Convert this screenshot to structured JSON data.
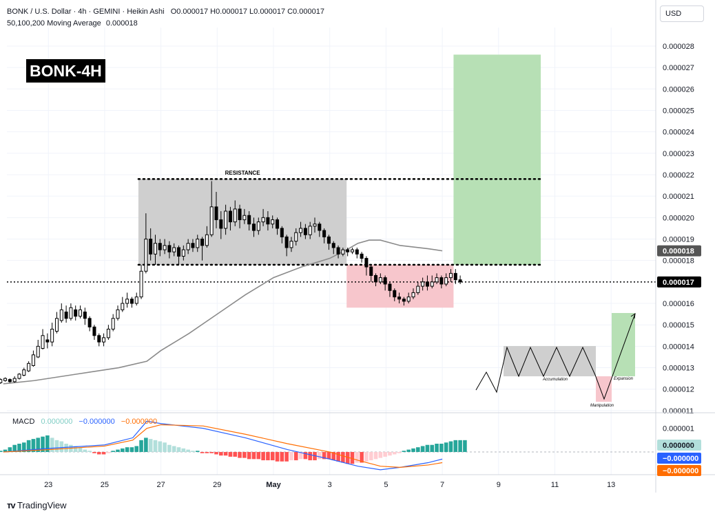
{
  "header": {
    "symbol": "BONK / U.S. Dollar · 4h · GEMINI · Heikin Ashi",
    "ohlc": "O0.000017 H0.000017 L0.000017 C0.000017",
    "ma_label": "50,100,200 Moving Average",
    "ma_value": "0.000018"
  },
  "currency_button": "USD",
  "badge": "BONK-4H",
  "resistance_label": "RESISTANCE",
  "inset": {
    "accumulation": "Accumulation",
    "manipulation": "Manipulation",
    "expansion": "Expansion"
  },
  "macd": {
    "label": "MACD",
    "hist_value": "0.000000",
    "macd_value": "−0.000000",
    "signal_value": "−0.000000",
    "axis_label": "0.000001"
  },
  "price_badges": {
    "ma": "0.000018",
    "last": "0.000017"
  },
  "macd_badges": {
    "hist": "0.000000",
    "macd": "−0.000000",
    "signal": "−0.000000"
  },
  "brand": "TradingView",
  "colors": {
    "up": "#000000",
    "down": "#000000",
    "ma": "#8a8a8a",
    "green_box": "#b7e0b5",
    "red_box": "#f7c6cc",
    "range_box": "#cfcfcf",
    "macd_line": "#2962ff",
    "signal_line": "#ff6d00",
    "hist_pos_strong": "#26a69a",
    "hist_pos_weak": "#b2dfdb",
    "hist_neg_strong": "#ff5252",
    "hist_neg_weak": "#ffcdd2"
  },
  "chart_data": {
    "type": "candlestick",
    "y_axis": {
      "ticks": [
        "0.000028",
        "0.000027",
        "0.000026",
        "0.000025",
        "0.000024",
        "0.000023",
        "0.000022",
        "0.000021",
        "0.000020",
        "0.000019",
        "0.000018",
        "0.000017",
        "0.000016",
        "0.000015",
        "0.000014",
        "0.000013",
        "0.000012",
        "0.000011"
      ],
      "range": [
        1.09e-05,
        2.88e-05
      ]
    },
    "x_axis": {
      "ticks": [
        "23",
        "25",
        "27",
        "29",
        "May",
        "3",
        "5",
        "7",
        "9",
        "11",
        "13"
      ],
      "tick_days": [
        -8,
        -6,
        -4,
        -2,
        0,
        2,
        4,
        6,
        8,
        10,
        12
      ]
    },
    "candles_start_day": -9.7,
    "candle_interval_days": 0.1667,
    "candles": [
      [
        12.3,
        12.45,
        12.25,
        12.5
      ],
      [
        12.4,
        12.5,
        12.35,
        12.55
      ],
      [
        12.45,
        12.35,
        12.3,
        12.5
      ],
      [
        12.35,
        12.5,
        12.3,
        12.6
      ],
      [
        12.5,
        12.7,
        12.45,
        12.75
      ],
      [
        12.65,
        12.9,
        12.6,
        13.0
      ],
      [
        12.85,
        13.2,
        12.8,
        13.3
      ],
      [
        13.1,
        13.6,
        13.05,
        13.8
      ],
      [
        13.5,
        14.0,
        13.45,
        14.3
      ],
      [
        13.9,
        14.5,
        13.85,
        14.8
      ],
      [
        14.3,
        14.2,
        13.9,
        14.6
      ],
      [
        14.2,
        14.8,
        14.0,
        15.1
      ],
      [
        14.7,
        15.3,
        14.6,
        15.6
      ],
      [
        15.2,
        15.7,
        15.1,
        16.0
      ],
      [
        15.6,
        15.3,
        15.1,
        15.9
      ],
      [
        15.3,
        15.8,
        15.2,
        16.0
      ],
      [
        15.7,
        15.4,
        15.2,
        15.9
      ],
      [
        15.4,
        15.7,
        15.3,
        15.9
      ],
      [
        15.6,
        15.3,
        15.0,
        15.8
      ],
      [
        15.3,
        14.9,
        14.7,
        15.4
      ],
      [
        14.9,
        14.5,
        14.3,
        15.0
      ],
      [
        14.5,
        14.2,
        14.0,
        14.6
      ],
      [
        14.2,
        14.4,
        14.0,
        14.6
      ],
      [
        14.4,
        14.8,
        14.3,
        15.0
      ],
      [
        14.8,
        15.3,
        14.7,
        15.5
      ],
      [
        15.3,
        15.7,
        15.2,
        15.9
      ],
      [
        15.7,
        16.0,
        15.6,
        16.3
      ],
      [
        16.0,
        16.2,
        15.8,
        16.5
      ],
      [
        16.2,
        16.0,
        15.8,
        16.3
      ],
      [
        16.0,
        16.3,
        15.9,
        16.5
      ],
      [
        16.3,
        17.5,
        16.2,
        17.8
      ],
      [
        17.5,
        19.0,
        17.4,
        20.2
      ],
      [
        19.0,
        18.3,
        18.0,
        19.5
      ],
      [
        18.3,
        18.8,
        17.8,
        19.2
      ],
      [
        18.8,
        18.5,
        18.2,
        19.0
      ],
      [
        18.5,
        18.7,
        18.3,
        19.0
      ],
      [
        18.7,
        18.4,
        18.1,
        18.9
      ],
      [
        18.4,
        18.6,
        18.2,
        18.8
      ],
      [
        18.6,
        18.2,
        17.8,
        18.7
      ],
      [
        18.2,
        18.5,
        18.0,
        18.7
      ],
      [
        18.5,
        18.8,
        18.3,
        19.0
      ],
      [
        18.8,
        18.6,
        18.4,
        19.0
      ],
      [
        18.6,
        19.0,
        18.4,
        19.2
      ],
      [
        19.0,
        18.7,
        18.0,
        19.1
      ],
      [
        18.7,
        19.2,
        18.6,
        19.6
      ],
      [
        19.2,
        20.5,
        19.1,
        21.7
      ],
      [
        20.5,
        19.9,
        19.5,
        21.2
      ],
      [
        19.9,
        19.5,
        19.0,
        20.3
      ],
      [
        19.5,
        20.3,
        19.2,
        20.6
      ],
      [
        20.3,
        19.8,
        19.4,
        20.5
      ],
      [
        19.8,
        20.4,
        19.6,
        20.8
      ],
      [
        20.4,
        19.9,
        19.5,
        20.6
      ],
      [
        19.9,
        20.1,
        19.7,
        20.4
      ],
      [
        20.1,
        19.7,
        19.4,
        20.3
      ],
      [
        19.7,
        19.4,
        19.1,
        20.0
      ],
      [
        19.4,
        19.8,
        19.2,
        20.0
      ],
      [
        19.8,
        20.0,
        19.6,
        20.4
      ],
      [
        20.0,
        19.7,
        19.4,
        20.3
      ],
      [
        19.7,
        19.9,
        19.5,
        20.1
      ],
      [
        19.9,
        19.5,
        19.2,
        20.0
      ],
      [
        19.5,
        19.1,
        18.8,
        19.6
      ],
      [
        19.1,
        18.6,
        18.2,
        19.2
      ],
      [
        18.6,
        18.9,
        18.4,
        19.1
      ],
      [
        18.9,
        19.3,
        18.7,
        19.5
      ],
      [
        19.3,
        19.5,
        19.1,
        19.8
      ],
      [
        19.5,
        19.2,
        19.0,
        19.7
      ],
      [
        19.2,
        19.6,
        19.0,
        19.8
      ],
      [
        19.6,
        19.7,
        19.3,
        20.0
      ],
      [
        19.7,
        19.4,
        19.1,
        19.8
      ],
      [
        19.4,
        19.1,
        18.8,
        19.5
      ],
      [
        19.1,
        18.8,
        18.5,
        19.2
      ],
      [
        18.8,
        18.6,
        18.3,
        18.9
      ],
      [
        18.6,
        18.3,
        18.1,
        18.7
      ],
      [
        18.3,
        18.5,
        18.2,
        18.6
      ],
      [
        18.5,
        18.4,
        18.2,
        18.6
      ],
      [
        18.4,
        18.5,
        18.3,
        18.6
      ],
      [
        18.5,
        18.3,
        18.1,
        18.6
      ],
      [
        18.3,
        18.1,
        17.9,
        18.4
      ],
      [
        18.1,
        17.7,
        17.3,
        18.2
      ],
      [
        17.7,
        17.3,
        17.0,
        17.8
      ],
      [
        17.3,
        17.0,
        16.8,
        17.4
      ],
      [
        17.0,
        17.2,
        16.9,
        17.4
      ],
      [
        17.2,
        16.9,
        16.6,
        17.3
      ],
      [
        16.9,
        16.6,
        16.3,
        17.0
      ],
      [
        16.6,
        16.3,
        16.1,
        16.7
      ],
      [
        16.3,
        16.2,
        16.0,
        16.5
      ],
      [
        16.2,
        16.1,
        15.9,
        16.3
      ],
      [
        16.1,
        16.3,
        16.0,
        16.5
      ],
      [
        16.3,
        16.5,
        16.2,
        16.7
      ],
      [
        16.5,
        16.8,
        16.4,
        17.0
      ],
      [
        16.8,
        17.0,
        16.6,
        17.2
      ],
      [
        17.0,
        16.8,
        16.6,
        17.3
      ],
      [
        16.8,
        17.0,
        16.7,
        17.3
      ],
      [
        17.0,
        17.2,
        16.9,
        17.4
      ],
      [
        17.2,
        16.9,
        16.7,
        17.3
      ],
      [
        16.9,
        17.2,
        16.8,
        17.4
      ],
      [
        17.2,
        17.4,
        17.0,
        17.6
      ],
      [
        17.4,
        17.1,
        16.9,
        17.6
      ],
      [
        17.1,
        17.0,
        16.9,
        17.3
      ]
    ],
    "moving_average": [
      [
        -9.6,
        12.25
      ],
      [
        -8.5,
        12.4
      ],
      [
        -7,
        12.7
      ],
      [
        -5.5,
        13.0
      ],
      [
        -4.5,
        13.3
      ],
      [
        -4.0,
        13.8
      ],
      [
        -3,
        14.6
      ],
      [
        -2,
        15.5
      ],
      [
        -1,
        16.4
      ],
      [
        0,
        17.2
      ],
      [
        1,
        17.7
      ],
      [
        2,
        18.1
      ],
      [
        2.6,
        18.5
      ],
      [
        3.0,
        18.8
      ],
      [
        3.4,
        18.95
      ],
      [
        3.8,
        18.95
      ],
      [
        4.5,
        18.7
      ],
      [
        5.5,
        18.55
      ],
      [
        6.0,
        18.45
      ]
    ],
    "resistance": 2.18e-05,
    "range_box": {
      "x": [
        -4.8,
        2.6
      ],
      "y": [
        1.78e-05,
        2.18e-05
      ]
    },
    "support": 1.78e-05,
    "current_price": 1.7e-05,
    "red_box": {
      "x": [
        2.6,
        6.4
      ],
      "y": [
        1.58e-05,
        1.78e-05
      ]
    },
    "green_box": {
      "x": [
        6.4,
        9.5
      ],
      "y": [
        1.78e-05,
        2.76e-05
      ]
    },
    "macd_indicator": {
      "range": [
        -9e-07,
        1.6e-06
      ],
      "hist": [
        0.05,
        0.1,
        0.2,
        0.3,
        0.35,
        0.4,
        0.5,
        0.55,
        0.6,
        0.65,
        0.7,
        0.6,
        0.5,
        0.45,
        0.35,
        0.3,
        0.25,
        0.2,
        0.1,
        0.05,
        -0.05,
        -0.1,
        -0.1,
        -0.05,
        0.05,
        0.1,
        0.15,
        0.2,
        0.2,
        0.25,
        0.5,
        0.6,
        0.55,
        0.5,
        0.45,
        0.4,
        0.3,
        0.25,
        0.2,
        0.15,
        0.1,
        0.05,
        0.05,
        -0.05,
        -0.05,
        -0.05,
        -0.1,
        -0.15,
        -0.15,
        -0.2,
        -0.2,
        -0.25,
        -0.25,
        -0.3,
        -0.3,
        -0.3,
        -0.35,
        -0.35,
        -0.35,
        -0.4,
        -0.4,
        -0.4,
        -0.35,
        -0.35,
        -0.3,
        -0.3,
        -0.35,
        -0.35,
        -0.3,
        -0.3,
        -0.3,
        -0.35,
        -0.4,
        -0.45,
        -0.5,
        -0.5,
        -0.45,
        -0.45,
        -0.4,
        -0.35,
        -0.3,
        -0.25,
        -0.2,
        -0.15,
        -0.1,
        -0.05,
        0.05,
        0.1,
        0.15,
        0.2,
        0.25,
        0.3,
        0.3,
        0.35,
        0.35,
        0.4,
        0.45,
        0.5,
        0.5,
        0.5
      ],
      "macd_line": [
        [
          -9.6,
          0.0
        ],
        [
          -8,
          0.15
        ],
        [
          -6,
          0.3
        ],
        [
          -5,
          0.6
        ],
        [
          -4.5,
          1.3
        ],
        [
          -4,
          1.2
        ],
        [
          -2.5,
          1.0
        ],
        [
          -1,
          0.6
        ],
        [
          0.5,
          0.1
        ],
        [
          2,
          -0.3
        ],
        [
          3,
          -0.6
        ],
        [
          3.8,
          -0.75
        ],
        [
          4.5,
          -0.65
        ],
        [
          5.5,
          -0.45
        ],
        [
          6.0,
          -0.3
        ]
      ],
      "signal_line": [
        [
          -9.6,
          0.0
        ],
        [
          -8,
          0.1
        ],
        [
          -6,
          0.25
        ],
        [
          -5,
          0.5
        ],
        [
          -4.5,
          1.0
        ],
        [
          -4,
          1.15
        ],
        [
          -2.5,
          1.1
        ],
        [
          -1,
          0.75
        ],
        [
          0.5,
          0.35
        ],
        [
          2,
          0.0
        ],
        [
          3,
          -0.35
        ],
        [
          3.8,
          -0.6
        ],
        [
          4.5,
          -0.65
        ],
        [
          5.5,
          -0.55
        ],
        [
          6.0,
          -0.45
        ]
      ]
    }
  }
}
